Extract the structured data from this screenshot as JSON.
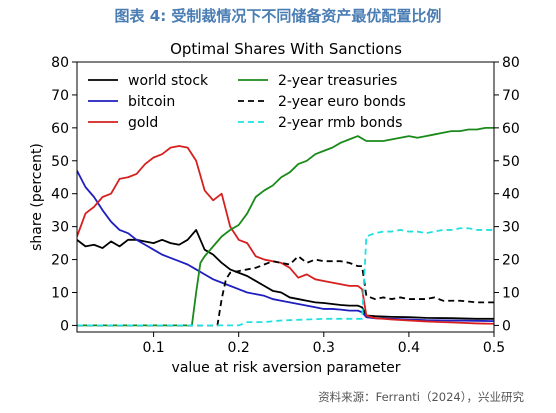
{
  "header": {
    "caption": "图表 4:   受制裁情况下不同储备资产最优配置比例"
  },
  "source": {
    "text": "资料来源：Ferranti（2024），兴业研究"
  },
  "chart_data": {
    "type": "line",
    "title": "Optimal Shares With Sanctions",
    "xlabel": "value at risk aversion parameter",
    "ylabel": "share (percent)",
    "xlim": [
      0.01,
      0.5
    ],
    "ylim": [
      -2,
      80
    ],
    "x_ticks": [
      0.1,
      0.2,
      0.3,
      0.4,
      0.5
    ],
    "x_tick_labels": [
      "0.1",
      "0.2",
      "0.3",
      "0.4",
      "0.5"
    ],
    "y_ticks": [
      0,
      10,
      20,
      30,
      40,
      50,
      60,
      70,
      80
    ],
    "y_tick_labels": [
      "0",
      "10",
      "20",
      "30",
      "40",
      "50",
      "60",
      "70",
      "80"
    ],
    "right_axis_mirrored": true,
    "grid": false,
    "legend_placement": "top, two columns",
    "series": [
      {
        "name": "world stock",
        "color": "#000000",
        "dash": "solid",
        "legend_col": 0,
        "legend_row": 0,
        "points": [
          [
            0.01,
            26
          ],
          [
            0.02,
            24
          ],
          [
            0.03,
            24.5
          ],
          [
            0.04,
            23.5
          ],
          [
            0.05,
            25.5
          ],
          [
            0.06,
            24
          ],
          [
            0.07,
            26
          ],
          [
            0.08,
            26
          ],
          [
            0.09,
            25.5
          ],
          [
            0.1,
            25
          ],
          [
            0.11,
            26
          ],
          [
            0.12,
            25
          ],
          [
            0.13,
            24.5
          ],
          [
            0.14,
            26
          ],
          [
            0.15,
            29
          ],
          [
            0.16,
            23
          ],
          [
            0.17,
            21.5
          ],
          [
            0.18,
            19
          ],
          [
            0.19,
            17
          ],
          [
            0.2,
            16
          ],
          [
            0.21,
            15
          ],
          [
            0.22,
            13.5
          ],
          [
            0.23,
            12
          ],
          [
            0.24,
            10.5
          ],
          [
            0.25,
            10
          ],
          [
            0.26,
            8.5
          ],
          [
            0.27,
            8
          ],
          [
            0.28,
            7.5
          ],
          [
            0.29,
            7
          ],
          [
            0.3,
            6.8
          ],
          [
            0.31,
            6.5
          ],
          [
            0.32,
            6.2
          ],
          [
            0.33,
            6
          ],
          [
            0.34,
            6
          ],
          [
            0.345,
            5.5
          ],
          [
            0.35,
            3
          ],
          [
            0.36,
            2.8
          ],
          [
            0.38,
            2.6
          ],
          [
            0.4,
            2.5
          ],
          [
            0.42,
            2.3
          ],
          [
            0.45,
            2.2
          ],
          [
            0.48,
            2
          ],
          [
            0.5,
            2
          ]
        ]
      },
      {
        "name": "bitcoin",
        "color": "#1f1fbf",
        "dash": "solid",
        "legend_col": 0,
        "legend_row": 1,
        "points": [
          [
            0.01,
            47
          ],
          [
            0.02,
            42
          ],
          [
            0.03,
            39
          ],
          [
            0.04,
            35
          ],
          [
            0.05,
            31.5
          ],
          [
            0.06,
            29
          ],
          [
            0.07,
            28
          ],
          [
            0.08,
            26
          ],
          [
            0.09,
            24.5
          ],
          [
            0.1,
            23
          ],
          [
            0.11,
            21.5
          ],
          [
            0.12,
            20.5
          ],
          [
            0.13,
            19.5
          ],
          [
            0.14,
            18.5
          ],
          [
            0.15,
            17
          ],
          [
            0.16,
            15.5
          ],
          [
            0.17,
            14
          ],
          [
            0.18,
            13
          ],
          [
            0.19,
            12
          ],
          [
            0.2,
            11
          ],
          [
            0.21,
            10
          ],
          [
            0.22,
            9.5
          ],
          [
            0.23,
            9
          ],
          [
            0.24,
            8
          ],
          [
            0.25,
            7.5
          ],
          [
            0.26,
            7
          ],
          [
            0.27,
            6.5
          ],
          [
            0.28,
            6
          ],
          [
            0.29,
            5.5
          ],
          [
            0.3,
            5
          ],
          [
            0.31,
            5
          ],
          [
            0.32,
            4.8
          ],
          [
            0.33,
            4.5
          ],
          [
            0.34,
            4.5
          ],
          [
            0.345,
            4
          ],
          [
            0.35,
            2.5
          ],
          [
            0.36,
            2.2
          ],
          [
            0.38,
            2
          ],
          [
            0.4,
            1.8
          ],
          [
            0.42,
            1.6
          ],
          [
            0.45,
            1.5
          ],
          [
            0.48,
            1.4
          ],
          [
            0.5,
            1.3
          ]
        ]
      },
      {
        "name": "gold",
        "color": "#d62020",
        "dash": "solid",
        "legend_col": 0,
        "legend_row": 2,
        "points": [
          [
            0.01,
            27
          ],
          [
            0.02,
            34
          ],
          [
            0.03,
            36
          ],
          [
            0.04,
            39
          ],
          [
            0.05,
            40
          ],
          [
            0.06,
            44.5
          ],
          [
            0.07,
            45
          ],
          [
            0.08,
            46
          ],
          [
            0.09,
            49
          ],
          [
            0.1,
            51
          ],
          [
            0.11,
            52
          ],
          [
            0.12,
            54
          ],
          [
            0.13,
            54.5
          ],
          [
            0.14,
            54
          ],
          [
            0.15,
            50
          ],
          [
            0.16,
            41
          ],
          [
            0.17,
            38
          ],
          [
            0.18,
            40
          ],
          [
            0.19,
            30
          ],
          [
            0.2,
            26
          ],
          [
            0.21,
            25
          ],
          [
            0.22,
            21
          ],
          [
            0.23,
            20
          ],
          [
            0.24,
            19.5
          ],
          [
            0.25,
            19
          ],
          [
            0.26,
            17.5
          ],
          [
            0.27,
            14.5
          ],
          [
            0.28,
            15.5
          ],
          [
            0.29,
            14
          ],
          [
            0.3,
            13.5
          ],
          [
            0.31,
            13
          ],
          [
            0.32,
            12.5
          ],
          [
            0.33,
            12
          ],
          [
            0.34,
            12
          ],
          [
            0.345,
            11
          ],
          [
            0.35,
            3
          ],
          [
            0.36,
            2.2
          ],
          [
            0.38,
            1.8
          ],
          [
            0.4,
            1.5
          ],
          [
            0.42,
            1.2
          ],
          [
            0.44,
            1
          ],
          [
            0.46,
            0.8
          ],
          [
            0.48,
            0.6
          ],
          [
            0.5,
            0.5
          ]
        ]
      },
      {
        "name": "2-year treasuries",
        "color": "#1a8a1a",
        "dash": "solid",
        "legend_col": 1,
        "legend_row": 0,
        "points": [
          [
            0.01,
            0
          ],
          [
            0.05,
            0
          ],
          [
            0.1,
            0
          ],
          [
            0.14,
            0
          ],
          [
            0.145,
            0
          ],
          [
            0.15,
            10
          ],
          [
            0.155,
            19
          ],
          [
            0.16,
            21
          ],
          [
            0.17,
            24
          ],
          [
            0.18,
            27
          ],
          [
            0.19,
            29
          ],
          [
            0.2,
            30.5
          ],
          [
            0.21,
            34
          ],
          [
            0.22,
            39
          ],
          [
            0.23,
            41
          ],
          [
            0.24,
            42.5
          ],
          [
            0.25,
            45
          ],
          [
            0.26,
            46.5
          ],
          [
            0.27,
            49
          ],
          [
            0.28,
            50
          ],
          [
            0.29,
            52
          ],
          [
            0.3,
            53
          ],
          [
            0.31,
            54
          ],
          [
            0.32,
            55.5
          ],
          [
            0.33,
            56.5
          ],
          [
            0.34,
            57.5
          ],
          [
            0.35,
            56
          ],
          [
            0.36,
            56
          ],
          [
            0.37,
            56
          ],
          [
            0.38,
            56.5
          ],
          [
            0.39,
            57
          ],
          [
            0.4,
            57.5
          ],
          [
            0.41,
            57
          ],
          [
            0.42,
            57.5
          ],
          [
            0.43,
            58
          ],
          [
            0.44,
            58.5
          ],
          [
            0.45,
            59
          ],
          [
            0.46,
            59
          ],
          [
            0.47,
            59.5
          ],
          [
            0.48,
            59.5
          ],
          [
            0.49,
            60
          ],
          [
            0.5,
            60
          ]
        ]
      },
      {
        "name": "2-year euro bonds",
        "color": "#000000",
        "dash": "dashed",
        "legend_col": 1,
        "legend_row": 1,
        "points": [
          [
            0.01,
            0
          ],
          [
            0.1,
            0
          ],
          [
            0.17,
            0
          ],
          [
            0.175,
            0
          ],
          [
            0.18,
            8
          ],
          [
            0.185,
            14
          ],
          [
            0.19,
            16
          ],
          [
            0.2,
            16.5
          ],
          [
            0.21,
            17
          ],
          [
            0.22,
            17.5
          ],
          [
            0.23,
            18.5
          ],
          [
            0.24,
            19.5
          ],
          [
            0.25,
            19
          ],
          [
            0.26,
            18.5
          ],
          [
            0.27,
            21
          ],
          [
            0.28,
            19
          ],
          [
            0.29,
            20
          ],
          [
            0.3,
            19.5
          ],
          [
            0.31,
            19.5
          ],
          [
            0.32,
            19.5
          ],
          [
            0.33,
            19
          ],
          [
            0.34,
            18
          ],
          [
            0.345,
            18
          ],
          [
            0.35,
            9
          ],
          [
            0.36,
            8
          ],
          [
            0.37,
            8.5
          ],
          [
            0.38,
            8
          ],
          [
            0.39,
            8.5
          ],
          [
            0.4,
            8
          ],
          [
            0.42,
            8
          ],
          [
            0.43,
            8.5
          ],
          [
            0.44,
            7.5
          ],
          [
            0.46,
            7.5
          ],
          [
            0.48,
            7
          ],
          [
            0.5,
            7
          ]
        ]
      },
      {
        "name": "2-year rmb bonds",
        "color": "#20e0e0",
        "dash": "dashed",
        "legend_col": 1,
        "legend_row": 2,
        "points": [
          [
            0.01,
            0
          ],
          [
            0.1,
            0
          ],
          [
            0.2,
            0
          ],
          [
            0.21,
            1
          ],
          [
            0.22,
            1
          ],
          [
            0.23,
            1
          ],
          [
            0.25,
            1.5
          ],
          [
            0.28,
            1.8
          ],
          [
            0.3,
            2
          ],
          [
            0.33,
            2
          ],
          [
            0.345,
            2
          ],
          [
            0.35,
            27
          ],
          [
            0.36,
            28
          ],
          [
            0.37,
            28.5
          ],
          [
            0.38,
            28.5
          ],
          [
            0.39,
            29
          ],
          [
            0.4,
            28.5
          ],
          [
            0.41,
            28.5
          ],
          [
            0.42,
            28
          ],
          [
            0.43,
            28.5
          ],
          [
            0.44,
            29
          ],
          [
            0.45,
            29
          ],
          [
            0.46,
            29.5
          ],
          [
            0.47,
            29.5
          ],
          [
            0.48,
            29
          ],
          [
            0.49,
            29
          ],
          [
            0.5,
            29
          ]
        ]
      }
    ]
  }
}
